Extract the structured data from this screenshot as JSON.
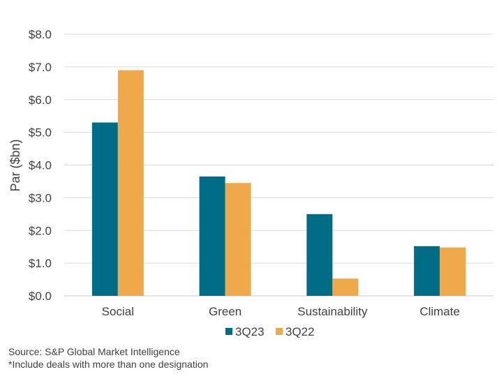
{
  "chart_data": {
    "type": "bar",
    "categories": [
      "Social",
      "Green",
      "Sustainability",
      "Climate"
    ],
    "series": [
      {
        "name": "3Q23",
        "values": [
          5.3,
          3.65,
          2.5,
          1.52
        ],
        "color": "#006d87"
      },
      {
        "name": "3Q22",
        "values": [
          6.9,
          3.45,
          0.53,
          1.48
        ],
        "color": "#f0a94a"
      }
    ],
    "ylabel": "Par ($bn)",
    "ylim": [
      0,
      8
    ],
    "yticks": [
      "$0.0",
      "$1.0",
      "$2.0",
      "$3.0",
      "$4.0",
      "$5.0",
      "$6.0",
      "$7.0",
      "$8.0"
    ],
    "grid": true,
    "legend_position": "bottom"
  },
  "notes": {
    "source": "Source: S&P Global Market Intelligence",
    "footnote": "*Include deals with more than one designation"
  }
}
